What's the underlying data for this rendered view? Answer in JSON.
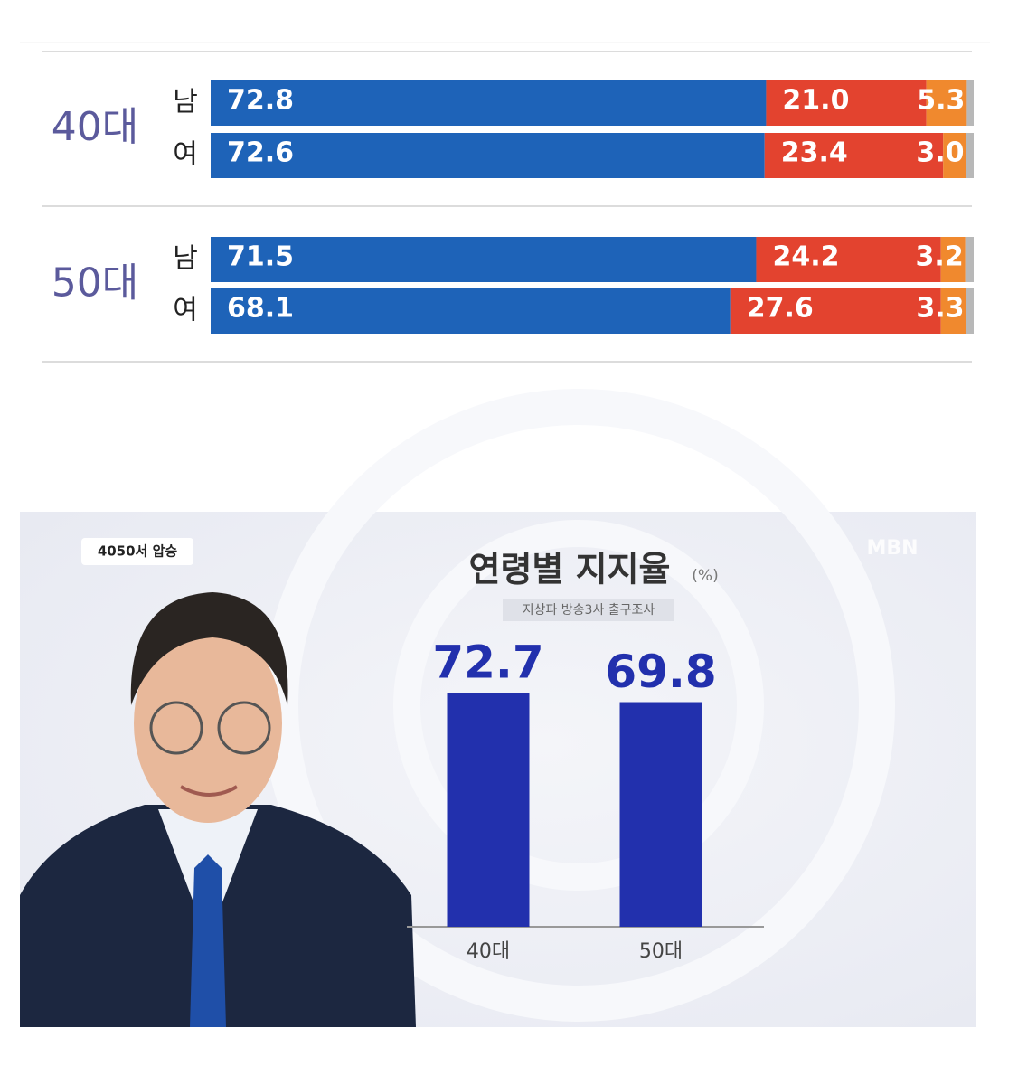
{
  "chart_data": [
    {
      "type": "bar",
      "orientation": "horizontal",
      "stacked": true,
      "groups": [
        "40대",
        "50대"
      ],
      "categories": [
        "남",
        "여",
        "남",
        "여"
      ],
      "xlim": [
        0,
        100
      ],
      "series": [
        {
          "color": "#1e63b8",
          "values": [
            72.8,
            72.6,
            71.5,
            68.1
          ]
        },
        {
          "color": "#e3432f",
          "values": [
            21.0,
            23.4,
            24.2,
            27.6
          ],
          "value_labels": [
            "21.0",
            "23.4",
            "24.2",
            "27.6"
          ]
        },
        {
          "color": "#f0892e",
          "values": [
            5.3,
            3.0,
            3.2,
            3.3
          ],
          "value_labels": [
            "5.3",
            "3.0",
            "3.2",
            "3.3"
          ]
        },
        {
          "color": "#b8b8b8",
          "values": [
            0.9,
            1.0,
            1.1,
            1.0
          ]
        }
      ]
    },
    {
      "type": "bar",
      "badge": "4050서 압승",
      "logo": "MBN",
      "title": "연령별 지지율",
      "unit": "(%)",
      "subtitle": "지상파 방송3사 출구조사",
      "categories": [
        "40대",
        "50대"
      ],
      "values": [
        72.7,
        69.8
      ],
      "color": "#2230ad",
      "ylim": [
        0,
        100
      ]
    }
  ]
}
